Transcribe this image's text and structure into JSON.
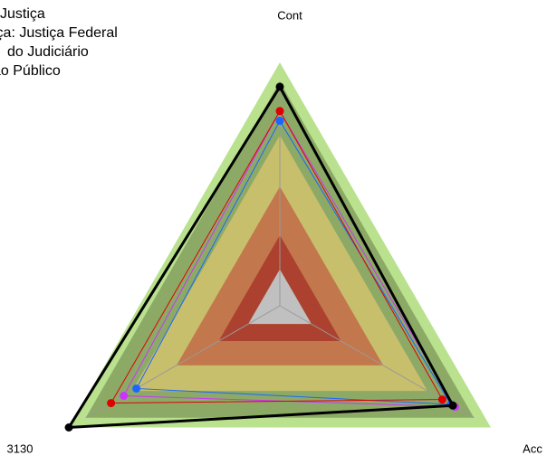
{
  "chart_data": {
    "type": "radar",
    "categories": [
      "Cont",
      "Acc",
      "3130"
    ],
    "rlim": [
      0,
      1
    ],
    "series": [
      {
        "name": "Justiça",
        "color": "#000000",
        "values": [
          0.9,
          0.82,
          1.0
        ]
      },
      {
        "name": "iça: Justiça Federal",
        "color": "#e00000",
        "values": [
          0.8,
          0.77,
          0.8
        ]
      },
      {
        "name": "do Judiciário",
        "color": "#cc33ff",
        "values": [
          0.8,
          0.83,
          0.74
        ]
      },
      {
        "name": "ão Público",
        "color": "#1a66ff",
        "values": [
          0.76,
          0.81,
          0.68
        ]
      }
    ]
  }
}
